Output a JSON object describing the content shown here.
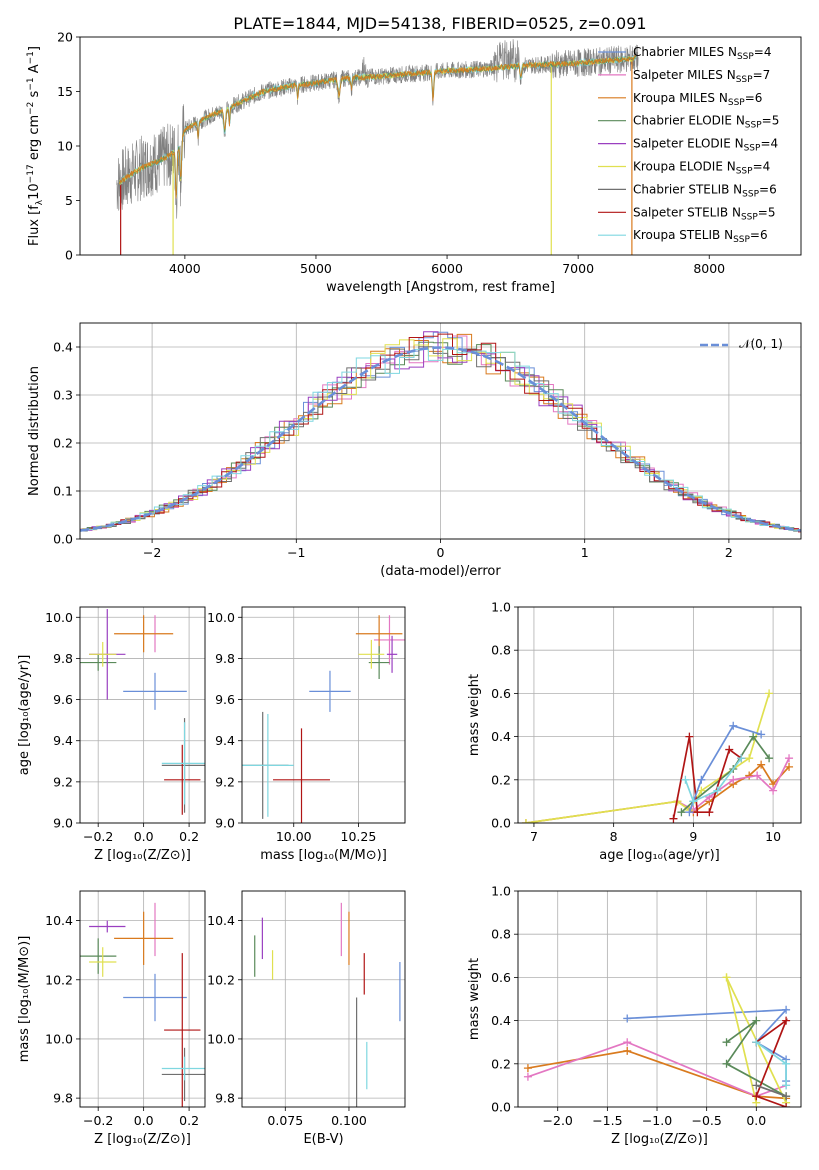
{
  "figure": {
    "title": "PLATE=1844, MJD=54138, FIBERID=0525, z=0.091",
    "colors": {
      "chabrier_miles": "#6a8fd8",
      "salpeter_miles": "#e377c2",
      "kroupa_miles": "#d97a1e",
      "chabrier_elodie": "#5a8a5a",
      "salpeter_elodie": "#9a3fc0",
      "kroupa_elodie": "#e0e050",
      "chabrier_stelib": "#707070",
      "salpeter_stelib": "#b01515",
      "kroupa_stelib": "#7fd7e0",
      "data": "#808080",
      "grid": "#b0b0b0"
    }
  },
  "chart_data": [
    {
      "id": "spectrum",
      "type": "line",
      "title": "PLATE=1844, MJD=54138, FIBERID=0525, z=0.091",
      "xlabel": "wavelength [Angstrom, rest frame]",
      "ylabel_main": "Flux [f",
      "ylabel_sub": "λ",
      "ylabel_mid": "10",
      "ylabel_sup": "−17",
      "ylabel_rest": " erg cm",
      "ylabel_sup2": "−2",
      "ylabel_rest2": " s",
      "ylabel_sup3": "−1",
      "ylabel_rest3": " A",
      "ylabel_sup4": "−1",
      "ylabel_end": "]",
      "xlim": [
        3200,
        8700
      ],
      "ylim": [
        0,
        20
      ],
      "xticks": [
        "4000",
        "5000",
        "6000",
        "7000",
        "8000"
      ],
      "yticks": [
        "0",
        "5",
        "10",
        "15",
        "20"
      ],
      "legend": [
        {
          "name": "Chabrier MILES",
          "n": "4"
        },
        {
          "name": "Salpeter MILES",
          "n": "7"
        },
        {
          "name": "Kroupa MILES",
          "n": "6"
        },
        {
          "name": "Chabrier ELODIE",
          "n": "5"
        },
        {
          "name": "Salpeter ELODIE",
          "n": "4"
        },
        {
          "name": "Kroupa ELODIE",
          "n": "4"
        },
        {
          "name": "Chabrier STELIB",
          "n": "6"
        },
        {
          "name": "Salpeter STELIB",
          "n": "5"
        },
        {
          "name": "Kroupa STELIB",
          "n": "6"
        }
      ],
      "legend_n_label": "N",
      "legend_n_sub": "SSP",
      "continuum_x": [
        3480,
        3600,
        3700,
        3800,
        3900,
        3950,
        4000,
        4100,
        4200,
        4300,
        4400,
        4600,
        4800,
        5000,
        5200,
        5500,
        5800,
        6000,
        6300,
        6600,
        6800,
        7000,
        7200,
        7300,
        7400,
        7500
      ],
      "continuum_y": [
        6.5,
        7.5,
        8.2,
        8.6,
        9.3,
        9.8,
        11.5,
        12.2,
        12.8,
        13.3,
        13.9,
        15.0,
        15.5,
        15.8,
        16.2,
        16.4,
        16.7,
        16.9,
        17.1,
        17.4,
        17.5,
        17.6,
        17.8,
        17.9,
        18.0,
        18.1
      ]
    },
    {
      "id": "residuals",
      "type": "histogram",
      "xlabel": "(data-model)/error",
      "ylabel": "Normed distribution",
      "xlim": [
        -2.5,
        2.5
      ],
      "ylim": [
        0,
        0.45
      ],
      "xticks": [
        "−2",
        "−1",
        "0",
        "1",
        "2"
      ],
      "yticks": [
        "0.0",
        "0.1",
        "0.2",
        "0.3",
        "0.4"
      ],
      "legend": "𝒩(0, 1)",
      "gaussian": {
        "mean": 0,
        "sigma": 1
      }
    },
    {
      "id": "age_vs_Z",
      "type": "errorbar",
      "xlabel": "Z [log₁₀(Z/Z⊙)]",
      "ylabel": "age  [log₁₀(age/yr)]",
      "xlim": [
        -0.28,
        0.27
      ],
      "ylim": [
        9.0,
        10.05
      ],
      "xticks": [
        "−0.2",
        "0.0",
        "0.2"
      ],
      "yticks": [
        "9.0",
        "9.2",
        "9.4",
        "9.6",
        "9.8",
        "10.0"
      ],
      "points": [
        {
          "s": "chabrier_miles",
          "x": 0.05,
          "xe": 0.14,
          "y": 9.64,
          "ye": 0.09
        },
        {
          "s": "salpeter_miles",
          "x": 0.05,
          "xe": 0.0,
          "y": 9.92,
          "ye": 0.09
        },
        {
          "s": "kroupa_miles",
          "x": 0.0,
          "xe": 0.13,
          "y": 9.92,
          "ye": 0.09
        },
        {
          "s": "chabrier_elodie",
          "x": -0.2,
          "xe": 0.08,
          "y": 9.78,
          "ye": 0.04
        },
        {
          "s": "salpeter_elodie",
          "x": -0.16,
          "xe": 0.08,
          "y": 9.82,
          "ye": 0.22
        },
        {
          "s": "kroupa_elodie",
          "x": -0.18,
          "xe": 0.06,
          "y": 9.82,
          "ye": 0.06
        },
        {
          "s": "chabrier_stelib",
          "x": 0.18,
          "xe": 0.1,
          "y": 9.28,
          "ye": 0.23
        },
        {
          "s": "salpeter_stelib",
          "x": 0.17,
          "xe": 0.08,
          "y": 9.21,
          "ye": 0.17
        },
        {
          "s": "kroupa_stelib",
          "x": 0.18,
          "xe": 0.1,
          "y": 9.29,
          "ye": 0.2
        }
      ]
    },
    {
      "id": "age_vs_mass",
      "type": "errorbar",
      "xlabel": "mass [log₁₀(M/M⊙)]",
      "xlim": [
        9.8,
        10.43
      ],
      "ylim": [
        9.0,
        10.05
      ],
      "xticks": [
        "10.00",
        "10.25"
      ],
      "yticks": [
        "9.0",
        "9.2",
        "9.4",
        "9.6",
        "9.8",
        "10.0"
      ],
      "points": [
        {
          "s": "chabrier_miles",
          "x": 10.14,
          "xe": 0.08,
          "y": 9.64,
          "ye": 0.1
        },
        {
          "s": "salpeter_miles",
          "x": 10.37,
          "xe": 0.06,
          "y": 9.89,
          "ye": 0.12
        },
        {
          "s": "kroupa_miles",
          "x": 10.33,
          "xe": 0.09,
          "y": 9.92,
          "ye": 0.09
        },
        {
          "s": "chabrier_elodie",
          "x": 10.33,
          "xe": 0.04,
          "y": 9.78,
          "ye": 0.08
        },
        {
          "s": "salpeter_elodie",
          "x": 10.38,
          "xe": 0.02,
          "y": 9.82,
          "ye": 0.09
        },
        {
          "s": "kroupa_elodie",
          "x": 10.3,
          "xe": 0.05,
          "y": 9.82,
          "ye": 0.07
        },
        {
          "s": "chabrier_stelib",
          "x": 9.88,
          "xe": 0.1,
          "y": 9.28,
          "ye": 0.26
        },
        {
          "s": "salpeter_stelib",
          "x": 10.03,
          "xe": 0.11,
          "y": 9.21,
          "ye": 0.25
        },
        {
          "s": "kroupa_stelib",
          "x": 9.9,
          "xe": 0.1,
          "y": 9.28,
          "ye": 0.25
        }
      ]
    },
    {
      "id": "mw_vs_age",
      "type": "line",
      "xlabel": "age  [log₁₀(age/yr)]",
      "ylabel": "mass weight",
      "xlim": [
        6.8,
        10.35
      ],
      "ylim": [
        0,
        1.0
      ],
      "xticks": [
        "7",
        "8",
        "9",
        "10"
      ],
      "yticks": [
        "0.0",
        "0.2",
        "0.4",
        "0.6",
        "0.8",
        "1.0"
      ],
      "series": [
        {
          "s": "kroupa_miles",
          "x": [
            6.9,
            8.8,
            9.0,
            9.2,
            9.5,
            9.7,
            9.85,
            10.0,
            10.2
          ],
          "y": [
            0.0,
            0.1,
            0.05,
            0.1,
            0.18,
            0.22,
            0.27,
            0.18,
            0.26
          ]
        },
        {
          "s": "salpeter_miles",
          "x": [
            8.8,
            9.0,
            9.2,
            9.5,
            9.8,
            10.0,
            10.2
          ],
          "y": [
            0.1,
            0.06,
            0.12,
            0.2,
            0.22,
            0.15,
            0.3
          ]
        },
        {
          "s": "kroupa_elodie",
          "x": [
            6.9,
            8.8,
            8.95,
            9.1,
            9.7,
            9.95
          ],
          "y": [
            0.0,
            0.1,
            0.06,
            0.15,
            0.3,
            0.6
          ]
        },
        {
          "s": "chabrier_elodie",
          "x": [
            8.85,
            9.0,
            9.5,
            9.75,
            9.95
          ],
          "y": [
            0.05,
            0.1,
            0.25,
            0.4,
            0.3
          ]
        },
        {
          "s": "salpeter_stelib",
          "x": [
            8.75,
            8.95,
            9.05,
            9.2,
            9.45,
            9.6
          ],
          "y": [
            0.02,
            0.4,
            0.05,
            0.05,
            0.34,
            0.3
          ]
        },
        {
          "s": "chabrier_miles",
          "x": [
            8.95,
            9.1,
            9.5,
            9.85
          ],
          "y": [
            0.05,
            0.2,
            0.45,
            0.41
          ]
        },
        {
          "s": "kroupa_stelib",
          "x": [
            8.9,
            9.0,
            9.3,
            9.6
          ],
          "y": [
            0.2,
            0.1,
            0.15,
            0.3
          ]
        }
      ]
    },
    {
      "id": "mass_vs_Z",
      "type": "errorbar",
      "xlabel": "Z [log₁₀(Z/Z⊙)]",
      "ylabel": "mass [log₁₀(M/M⊙)]",
      "xlim": [
        -0.28,
        0.27
      ],
      "ylim": [
        9.77,
        10.5
      ],
      "xticks": [
        "−0.2",
        "0.0",
        "0.2"
      ],
      "yticks": [
        "9.8",
        "10.0",
        "10.2",
        "10.4"
      ],
      "points": [
        {
          "s": "chabrier_miles",
          "x": 0.05,
          "xe": 0.14,
          "y": 10.14,
          "ye": 0.08
        },
        {
          "s": "salpeter_miles",
          "x": 0.05,
          "xe": 0.0,
          "y": 10.37,
          "ye": 0.09
        },
        {
          "s": "kroupa_miles",
          "x": 0.0,
          "xe": 0.13,
          "y": 10.34,
          "ye": 0.09
        },
        {
          "s": "chabrier_elodie",
          "x": -0.2,
          "xe": 0.08,
          "y": 10.28,
          "ye": 0.06
        },
        {
          "s": "salpeter_elodie",
          "x": -0.16,
          "xe": 0.08,
          "y": 10.38,
          "ye": 0.02
        },
        {
          "s": "kroupa_elodie",
          "x": -0.18,
          "xe": 0.06,
          "y": 10.26,
          "ye": 0.05
        },
        {
          "s": "chabrier_stelib",
          "x": 0.18,
          "xe": 0.1,
          "y": 9.88,
          "ye": 0.09
        },
        {
          "s": "salpeter_stelib",
          "x": 0.17,
          "xe": 0.08,
          "y": 10.03,
          "ye": 0.26
        },
        {
          "s": "kroupa_stelib",
          "x": 0.18,
          "xe": 0.1,
          "y": 9.9,
          "ye": 0.04
        }
      ]
    },
    {
      "id": "mass_vs_ebv",
      "type": "errorbar",
      "xlabel": "E(B-V)",
      "xlim": [
        0.058,
        0.122
      ],
      "ylim": [
        9.77,
        10.5
      ],
      "xticks": [
        "0.075",
        "0.100"
      ],
      "yticks": [
        "9.8",
        "10.0",
        "10.2",
        "10.4"
      ],
      "points": [
        {
          "s": "chabrier_miles",
          "x": 0.12,
          "ye": 0.1,
          "y": 10.16
        },
        {
          "s": "salpeter_miles",
          "x": 0.097,
          "ye": 0.09,
          "y": 10.37
        },
        {
          "s": "kroupa_miles",
          "x": 0.1,
          "ye": 0.09,
          "y": 10.34
        },
        {
          "s": "chabrier_elodie",
          "x": 0.063,
          "ye": 0.07,
          "y": 10.28
        },
        {
          "s": "salpeter_elodie",
          "x": 0.066,
          "ye": 0.07,
          "y": 10.34
        },
        {
          "s": "kroupa_elodie",
          "x": 0.07,
          "ye": 0.05,
          "y": 10.25
        },
        {
          "s": "chabrier_stelib",
          "x": 0.103,
          "ye": 0.26,
          "y": 9.88
        },
        {
          "s": "salpeter_stelib",
          "x": 0.106,
          "ye": 0.07,
          "y": 10.22
        },
        {
          "s": "kroupa_stelib",
          "x": 0.107,
          "ye": 0.08,
          "y": 9.91
        }
      ]
    },
    {
      "id": "mw_vs_Z",
      "type": "line",
      "xlabel": "Z [log₁₀(Z/Z⊙)]",
      "ylabel": "mass weight",
      "xlim": [
        -2.4,
        0.45
      ],
      "ylim": [
        0,
        1.0
      ],
      "xticks": [
        "−2.0",
        "−1.5",
        "−1.0",
        "−0.5",
        "0.0"
      ],
      "yticks": [
        "0.0",
        "0.2",
        "0.4",
        "0.6",
        "0.8",
        "1.0"
      ],
      "series": [
        {
          "s": "chabrier_miles",
          "x": [
            -1.3,
            0.3,
            0.0,
            0.3,
            0.3
          ],
          "y": [
            0.41,
            0.45,
            0.3,
            0.22,
            0.12
          ]
        },
        {
          "s": "kroupa_miles",
          "x": [
            -2.3,
            -1.3,
            0.0,
            0.3
          ],
          "y": [
            0.18,
            0.26,
            0.05,
            0.04
          ]
        },
        {
          "s": "salpeter_miles",
          "x": [
            -2.3,
            -1.3,
            0.0,
            0.3
          ],
          "y": [
            0.14,
            0.3,
            0.05,
            0.1
          ]
        },
        {
          "s": "kroupa_elodie",
          "x": [
            -0.3,
            0.0,
            -0.3,
            0.3
          ],
          "y": [
            0.6,
            0.02,
            0.6,
            0.02
          ]
        },
        {
          "s": "chabrier_elodie",
          "x": [
            -0.3,
            0.0,
            -0.3,
            0.3
          ],
          "y": [
            0.3,
            0.4,
            0.2,
            0.05
          ]
        },
        {
          "s": "salpeter_stelib",
          "x": [
            0.0,
            0.3,
            0.0,
            0.3
          ],
          "y": [
            0.3,
            0.4,
            0.05,
            0.0
          ]
        },
        {
          "s": "kroupa_stelib",
          "x": [
            0.0,
            0.3,
            0.3
          ],
          "y": [
            0.3,
            0.2,
            0.1
          ]
        },
        {
          "s": "chabrier_stelib",
          "x": [
            0.0,
            0.3
          ],
          "y": [
            0.1,
            0.05
          ]
        }
      ]
    }
  ]
}
